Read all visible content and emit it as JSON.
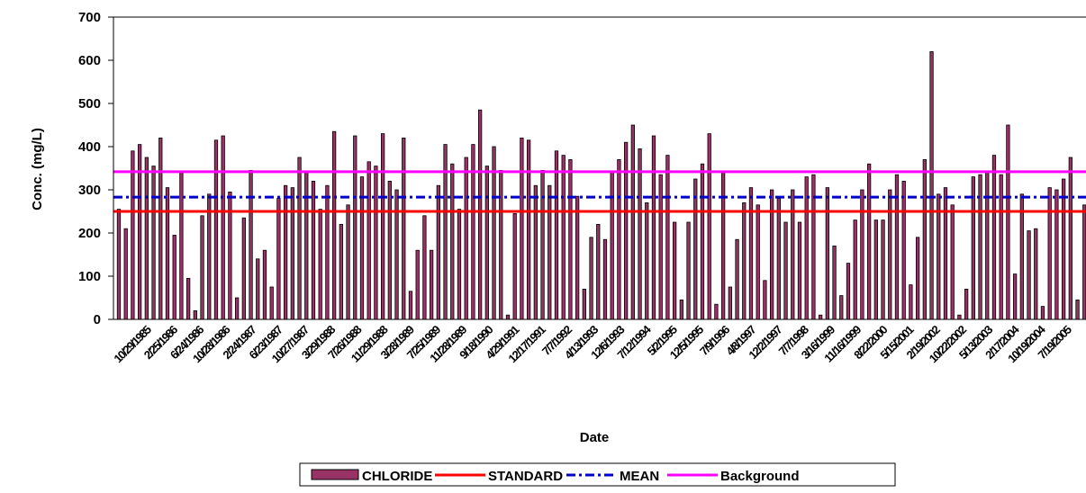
{
  "chart_data": {
    "type": "bar",
    "title": "",
    "xlabel": "Date",
    "ylabel": "Conc. (mg/L)",
    "ylim": [
      0,
      700
    ],
    "yticks": [
      0,
      100,
      200,
      300,
      400,
      500,
      600,
      700
    ],
    "x_tick_labels": [
      "10/29/1985",
      "2/25/1986",
      "6/24/1986",
      "10/28/1986",
      "2/24/1987",
      "6/23/1987",
      "10/27/1987",
      "3/29/1988",
      "7/26/1988",
      "11/29/1988",
      "3/28/1989",
      "7/25/1989",
      "11/28/1989",
      "9/18/1990",
      "4/29/1991",
      "12/17/1991",
      "7/7/1992",
      "4/13/1993",
      "12/6/1993",
      "7/12/1994",
      "5/2/1995",
      "12/5/1995",
      "7/9/1996",
      "4/8/1997",
      "12/2/1997",
      "7/7/1998",
      "3/16/1999",
      "11/16/1999",
      "8/22/2000",
      "5/15/2001",
      "2/19/2002",
      "10/22/2002",
      "5/13/2003",
      "2/17/2004",
      "10/19/2004",
      "7/19/2005"
    ],
    "grid": false,
    "legend_position": "bottom",
    "colors": {
      "bar_fill": "#993366",
      "bar_stroke": "#000000",
      "standard": "#ff0000",
      "mean": "#0000cc",
      "background": "#ff00ff"
    },
    "series": [
      {
        "name": "CHLORIDE",
        "kind": "bar",
        "values": [
          255,
          210,
          390,
          405,
          375,
          355,
          420,
          305,
          195,
          340,
          95,
          20,
          240,
          290,
          415,
          425,
          295,
          50,
          235,
          345,
          140,
          160,
          75,
          280,
          310,
          305,
          375,
          340,
          320,
          255,
          310,
          435,
          220,
          265,
          425,
          330,
          365,
          355,
          430,
          320,
          300,
          420,
          65,
          160,
          240,
          160,
          310,
          405,
          360,
          255,
          375,
          405,
          485,
          355,
          400,
          345,
          10,
          245,
          420,
          415,
          310,
          345,
          310,
          390,
          380,
          370,
          285,
          70,
          190,
          220,
          185,
          340,
          370,
          410,
          450,
          395,
          270,
          425,
          335,
          380,
          225,
          45,
          225,
          325,
          360,
          430,
          35,
          340,
          75,
          185,
          270,
          305,
          265,
          90,
          300,
          280,
          225,
          300,
          225,
          330,
          335,
          10,
          305,
          170,
          55,
          130,
          230,
          300,
          360,
          230,
          230,
          300,
          335,
          320,
          80,
          190,
          370,
          620,
          290,
          305,
          265,
          10,
          70,
          330,
          335,
          340,
          380,
          335,
          450,
          105,
          290,
          205,
          210,
          30,
          305,
          300,
          325,
          375,
          45,
          265
        ]
      },
      {
        "name": "STANDARD",
        "kind": "line",
        "style": "solid",
        "value": 250
      },
      {
        "name": "MEAN",
        "kind": "line",
        "style": "dash-dot",
        "value": 283
      },
      {
        "name": "Background",
        "kind": "line",
        "style": "solid",
        "value": 342
      }
    ]
  }
}
